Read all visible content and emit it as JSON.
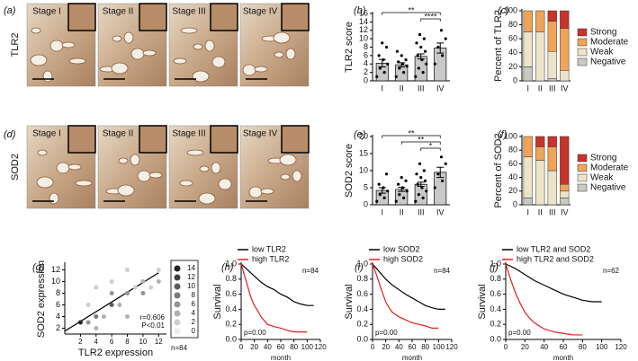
{
  "panel_labels": [
    "(a)",
    "(b)",
    "(c)",
    "(d)",
    "(e)",
    "(f)",
    "(g)",
    "(h)",
    "(i)",
    "(j)"
  ],
  "image_panels": [
    {
      "label": "TLR2",
      "stages": [
        "Stage I",
        "Stage II",
        "Stage III",
        "Stage IV"
      ]
    },
    {
      "label": "SOD2",
      "stages": [
        "Stage I",
        "Stage II",
        "Stage III",
        "Stage IV"
      ]
    }
  ],
  "chart_data": [
    {
      "type": "bar",
      "ylabel": "TLR2 score",
      "categories": [
        "I",
        "II",
        "III",
        "IV"
      ],
      "values": [
        4.2,
        3.8,
        5.8,
        7.8
      ],
      "errors": [
        0.9,
        0.5,
        0.6,
        1.2
      ],
      "color": "#c8c8c8",
      "points": [
        [
          1,
          2,
          3,
          4,
          5,
          6,
          8,
          9
        ],
        [
          1,
          2,
          3,
          3.5,
          4,
          4.5,
          5,
          6,
          7
        ],
        [
          1,
          2,
          3,
          4,
          5,
          6,
          7,
          8,
          9,
          10,
          11
        ],
        [
          4,
          6,
          8,
          10,
          12
        ]
      ],
      "ylim": [
        0,
        16
      ],
      "yticks": [
        0,
        2,
        4,
        6,
        8,
        10,
        12,
        14,
        16
      ],
      "annotations": [
        "**",
        "****"
      ]
    },
    {
      "type": "stacked_bar",
      "ylabel": "Percent of TLR2",
      "categories": [
        "I",
        "II",
        "III",
        "IV"
      ],
      "series": [
        {
          "name": "Negative",
          "color": "#c9c9c0",
          "values": [
            20,
            0,
            3,
            0
          ]
        },
        {
          "name": "Weak",
          "color": "#ece4c8",
          "values": [
            50,
            70,
            39,
            15
          ]
        },
        {
          "name": "Moderate",
          "color": "#f0a458",
          "values": [
            30,
            30,
            43,
            60
          ]
        },
        {
          "name": "Strong",
          "color": "#c8332b",
          "values": [
            0,
            0,
            15,
            25
          ]
        }
      ],
      "ylim": [
        0,
        100
      ],
      "yticks": [
        0,
        20,
        40,
        60,
        80,
        100
      ]
    },
    {
      "type": "bar",
      "ylabel": "SOD2 score",
      "categories": [
        "I",
        "II",
        "III",
        "IV"
      ],
      "values": [
        4.2,
        4.5,
        6.0,
        9.5
      ],
      "errors": [
        0.8,
        0.6,
        0.6,
        1.5
      ],
      "color": "#c8c8c8",
      "points": [
        [
          1,
          2,
          3,
          4,
          5,
          6,
          9
        ],
        [
          1,
          2,
          3,
          4,
          5,
          6,
          7,
          8
        ],
        [
          1,
          2,
          3,
          4,
          5,
          6,
          7,
          8,
          9,
          10,
          12
        ],
        [
          5,
          7,
          9,
          12,
          14
        ]
      ],
      "ylim": [
        0,
        20
      ],
      "yticks": [
        0,
        5,
        10,
        15,
        20
      ],
      "annotations": [
        "**",
        "**",
        "*"
      ]
    },
    {
      "type": "stacked_bar",
      "ylabel": "Percent of SOD2",
      "categories": [
        "I",
        "II",
        "III",
        "IV"
      ],
      "series": [
        {
          "name": "Negative",
          "color": "#c9c9c0",
          "values": [
            10,
            0,
            0,
            10
          ]
        },
        {
          "name": "Weak",
          "color": "#ece4c8",
          "values": [
            60,
            65,
            50,
            10
          ]
        },
        {
          "name": "Moderate",
          "color": "#f0a458",
          "values": [
            30,
            20,
            35,
            10
          ]
        },
        {
          "name": "Strong",
          "color": "#c8332b",
          "values": [
            0,
            15,
            15,
            70
          ]
        }
      ],
      "ylim": [
        0,
        100
      ],
      "yticks": [
        0,
        20,
        40,
        60,
        80,
        100
      ]
    },
    {
      "type": "bubble",
      "xlabel": "TLR2 expression",
      "ylabel": "SOD2 expression",
      "x": [
        2,
        3,
        4,
        4,
        5,
        6,
        6,
        7,
        8,
        8,
        9,
        10,
        10,
        11,
        12,
        12,
        3,
        6,
        8,
        4
      ],
      "y": [
        3,
        3,
        2,
        4,
        4,
        6,
        8,
        6,
        4,
        8,
        9,
        8,
        10,
        9,
        10,
        12,
        6,
        10,
        12,
        9
      ],
      "sizes": [
        14,
        6,
        4,
        8,
        4,
        10,
        6,
        4,
        4,
        6,
        2,
        6,
        4,
        2,
        4,
        2,
        2,
        2,
        2,
        2
      ],
      "size_legend": [
        14,
        12,
        10,
        8,
        6,
        4,
        2,
        0
      ],
      "fit_line": {
        "x": [
          0,
          12
        ],
        "y": [
          1.5,
          11.5
        ]
      },
      "xlim": [
        0,
        13
      ],
      "ylim": [
        1,
        13
      ],
      "xticks": [
        2,
        4,
        6,
        8,
        10,
        12
      ],
      "yticks": [
        2,
        4,
        6,
        8,
        10,
        12
      ],
      "annotations": [
        "r=0.606",
        "P<0.01",
        "n=84"
      ]
    },
    {
      "type": "line",
      "xlabel": "month",
      "ylabel": "Survival",
      "annotations": [
        "n=84",
        "p=0.00"
      ],
      "series": [
        {
          "name": "low TLR2",
          "color": "#000000",
          "x": [
            0,
            5,
            10,
            15,
            20,
            25,
            30,
            40,
            50,
            60,
            70,
            80,
            90,
            100,
            110
          ],
          "values": [
            1,
            0.96,
            0.92,
            0.88,
            0.84,
            0.8,
            0.76,
            0.7,
            0.66,
            0.6,
            0.56,
            0.5,
            0.47,
            0.45,
            0.45
          ]
        },
        {
          "name": "high TLR2",
          "color": "#e0201b",
          "x": [
            0,
            5,
            10,
            15,
            20,
            25,
            30,
            35,
            40,
            50,
            60,
            70,
            80,
            90,
            100
          ],
          "values": [
            1,
            0.85,
            0.7,
            0.55,
            0.45,
            0.38,
            0.3,
            0.25,
            0.2,
            0.17,
            0.15,
            0.12,
            0.1,
            0.1,
            0.1
          ]
        }
      ],
      "xlim": [
        0,
        120
      ],
      "ylim": [
        0,
        1
      ],
      "xticks": [
        0,
        20,
        40,
        60,
        80,
        100,
        120
      ],
      "yticks": [
        {
          "value": 0,
          "label": "0.0"
        },
        {
          "value": 0.2,
          "label": "0.2"
        },
        {
          "value": 0.4,
          "label": "0.4"
        },
        {
          "value": 0.6,
          "label": "0.6"
        },
        {
          "value": 0.8,
          "label": "0.8"
        },
        {
          "value": 1,
          "label": "1.0"
        }
      ]
    },
    {
      "type": "line",
      "xlabel": "month",
      "ylabel": "Survival",
      "annotations": [
        "n=84",
        "p=0.00"
      ],
      "series": [
        {
          "name": "low SOD2",
          "color": "#000000",
          "x": [
            0,
            5,
            10,
            15,
            20,
            25,
            30,
            40,
            50,
            60,
            70,
            80,
            90,
            100,
            110
          ],
          "values": [
            1,
            0.95,
            0.9,
            0.85,
            0.8,
            0.76,
            0.72,
            0.66,
            0.6,
            0.55,
            0.5,
            0.45,
            0.42,
            0.4,
            0.4
          ]
        },
        {
          "name": "high SOD2",
          "color": "#e0201b",
          "x": [
            0,
            5,
            10,
            15,
            20,
            25,
            30,
            40,
            50,
            60,
            70,
            80,
            90,
            100
          ],
          "values": [
            1,
            0.88,
            0.75,
            0.62,
            0.5,
            0.42,
            0.36,
            0.3,
            0.26,
            0.22,
            0.2,
            0.18,
            0.15,
            0.15
          ]
        }
      ],
      "xlim": [
        0,
        120
      ],
      "ylim": [
        0,
        1
      ],
      "xticks": [
        0,
        20,
        40,
        60,
        80,
        100,
        120
      ],
      "yticks": [
        {
          "value": 0,
          "label": "0.0"
        },
        {
          "value": 0.2,
          "label": "0.2"
        },
        {
          "value": 0.4,
          "label": "0.4"
        },
        {
          "value": 0.6,
          "label": "0.6"
        },
        {
          "value": 0.8,
          "label": "0.8"
        },
        {
          "value": 1,
          "label": "1.0"
        }
      ]
    },
    {
      "type": "line",
      "xlabel": "month",
      "ylabel": "Survival",
      "annotations": [
        "n=62",
        "p=0.00"
      ],
      "series": [
        {
          "name": "low TLR2 and SOD2",
          "color": "#000000",
          "x": [
            0,
            5,
            10,
            15,
            20,
            25,
            30,
            40,
            50,
            60,
            70,
            80,
            90,
            100
          ],
          "values": [
            1,
            0.97,
            0.94,
            0.9,
            0.86,
            0.82,
            0.78,
            0.72,
            0.66,
            0.6,
            0.56,
            0.52,
            0.5,
            0.5
          ]
        },
        {
          "name": "high TLR2 and SOD2",
          "color": "#e0201b",
          "x": [
            0,
            5,
            10,
            15,
            20,
            25,
            30,
            35,
            40,
            50,
            60,
            70,
            80
          ],
          "values": [
            1,
            0.8,
            0.62,
            0.48,
            0.36,
            0.28,
            0.22,
            0.18,
            0.14,
            0.1,
            0.08,
            0.06,
            0.06
          ]
        }
      ],
      "xlim": [
        0,
        120
      ],
      "ylim": [
        0,
        1
      ],
      "xticks": [
        0,
        20,
        40,
        60,
        80,
        100,
        120
      ],
      "yticks": [
        {
          "value": 0,
          "label": "0.0"
        },
        {
          "value": 0.2,
          "label": "0.2"
        },
        {
          "value": 0.4,
          "label": "0.4"
        },
        {
          "value": 0.6,
          "label": "0.6"
        },
        {
          "value": 0.8,
          "label": "0.8"
        },
        {
          "value": 1,
          "label": "1.0"
        }
      ]
    }
  ]
}
